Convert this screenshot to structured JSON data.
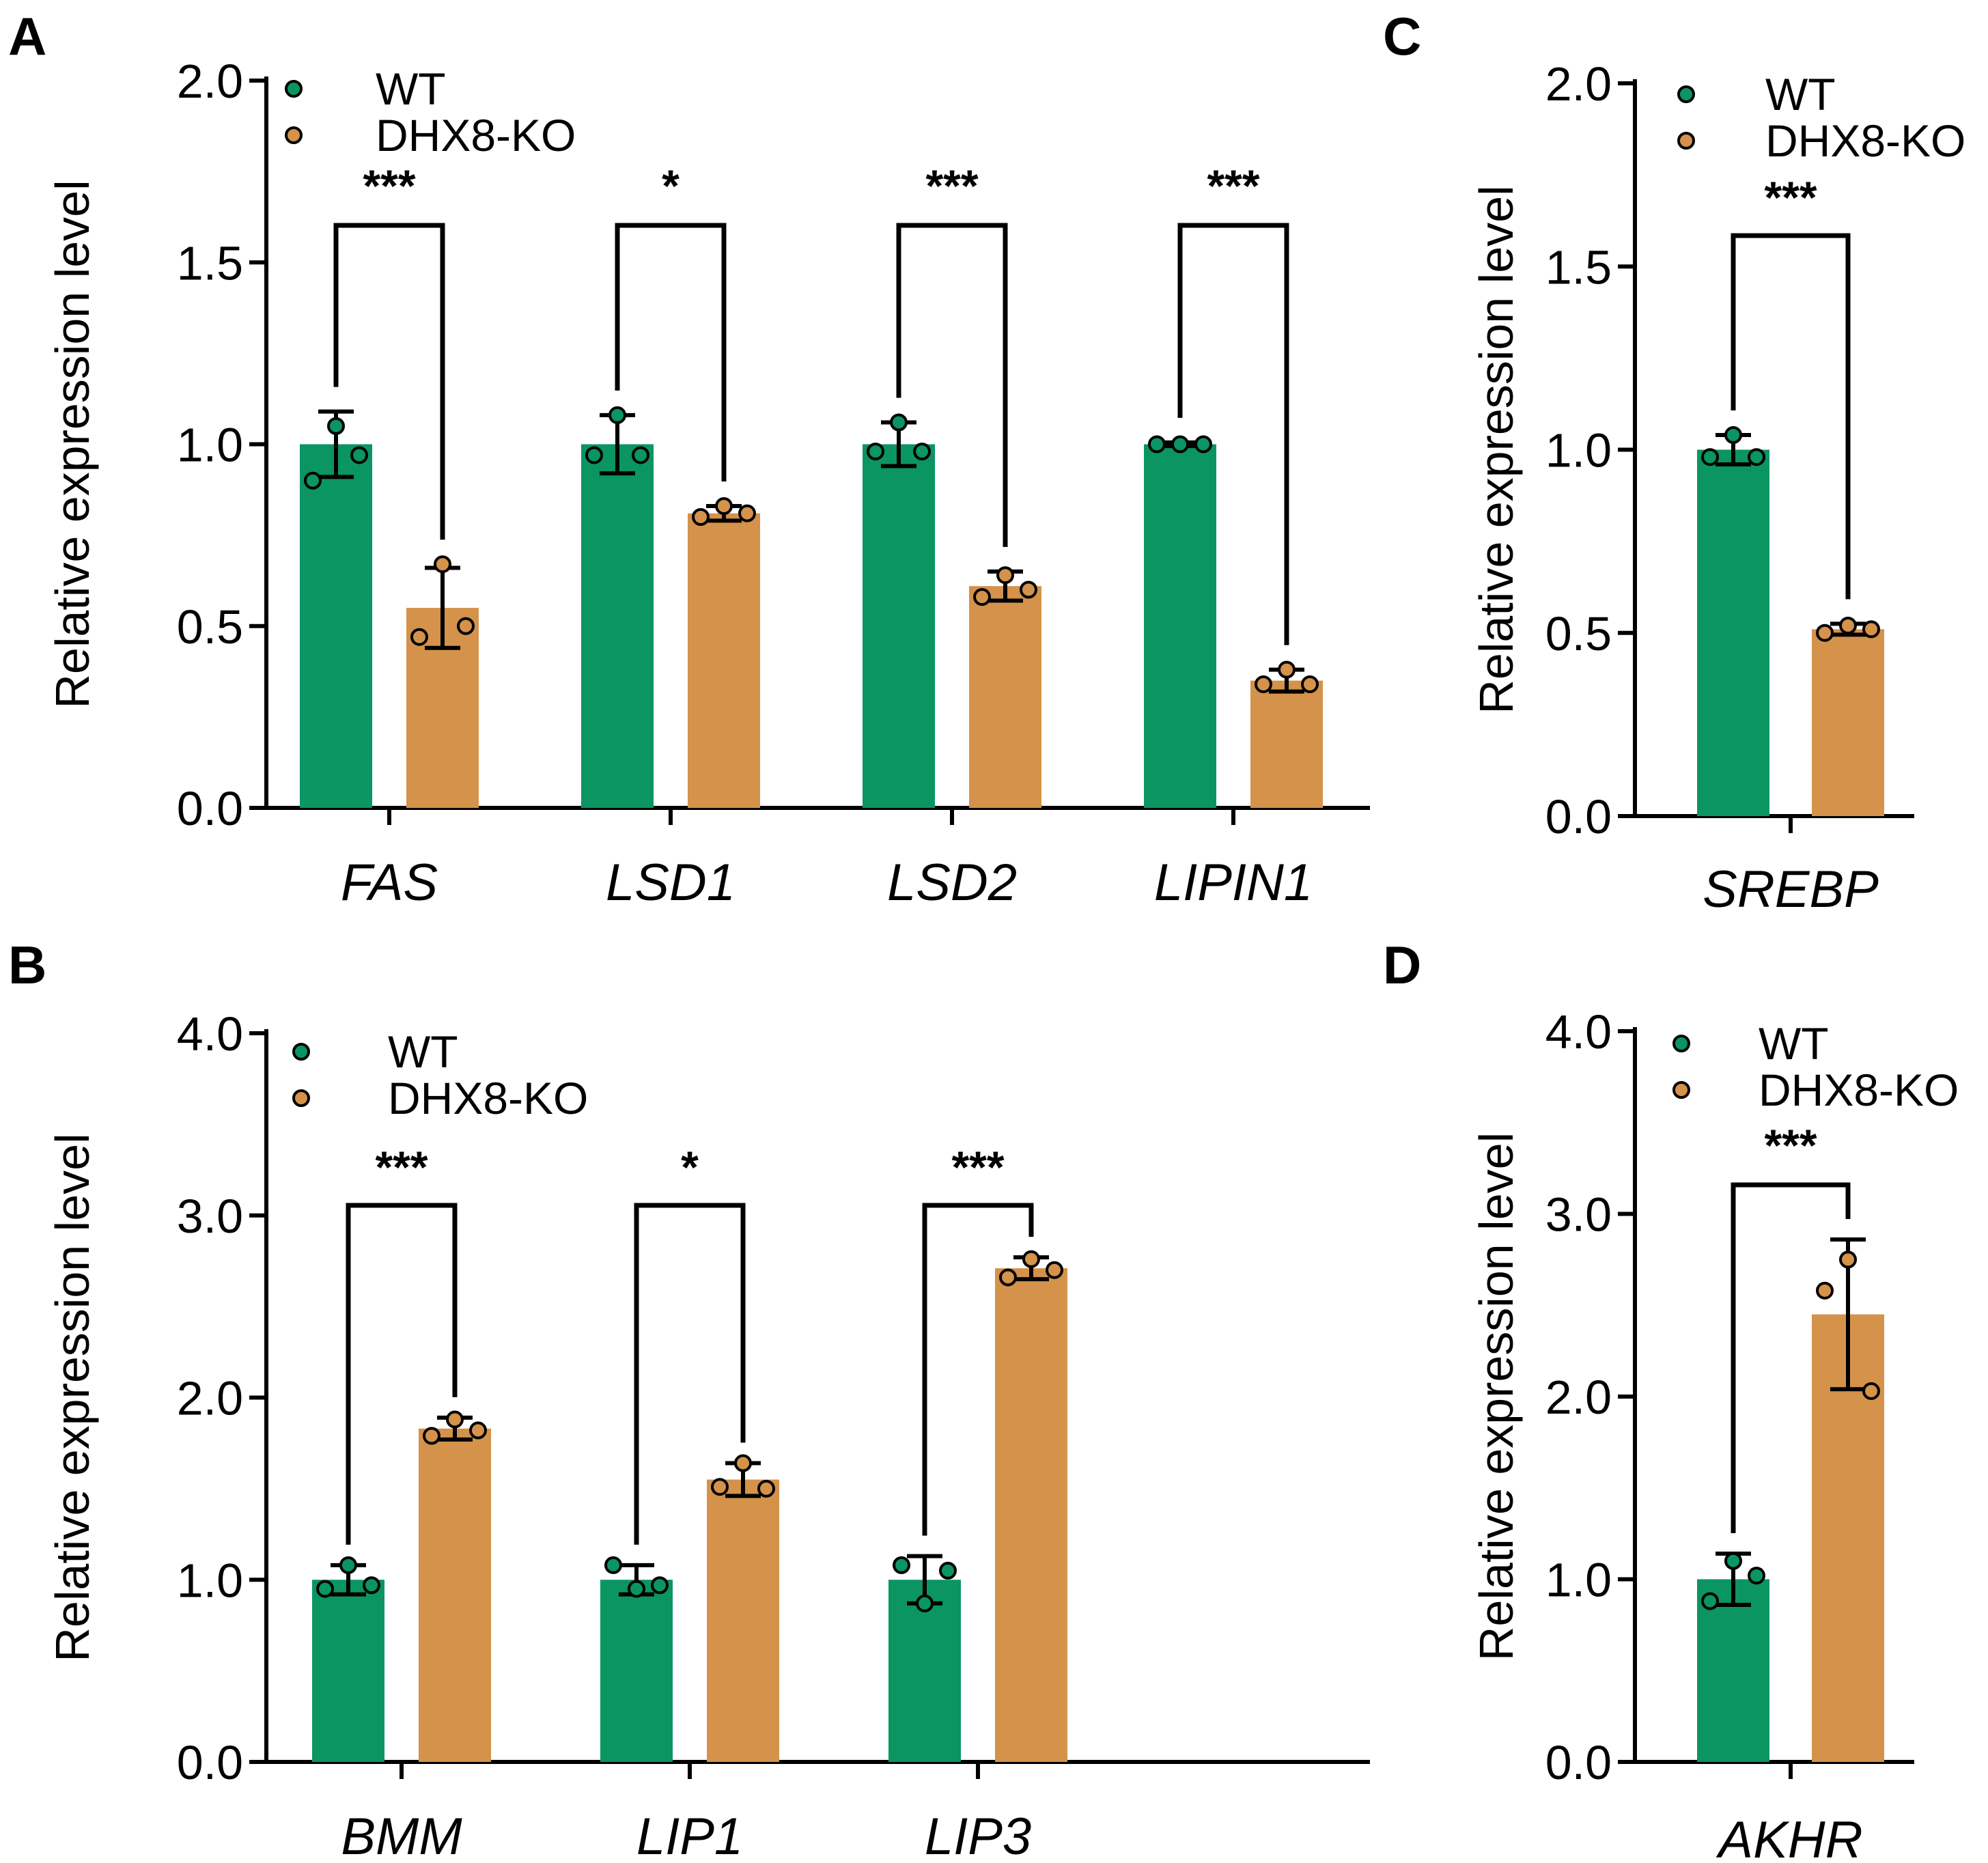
{
  "colors": {
    "WT": "#0A9563",
    "DHX8-KO": "#D4924B"
  },
  "chart_data": [
    {
      "panel": "A",
      "type": "bar",
      "ylabel": "Relative expression level",
      "ylim": [
        0,
        2.0
      ],
      "yticks": [
        "0.0",
        "0.5",
        "1.0",
        "1.5",
        "2.0"
      ],
      "legend": [
        "WT",
        "DHX8-KO"
      ],
      "legend_position": "top-left",
      "categories": [
        "FAS",
        "LSD1",
        "LSD2",
        "LIPIN1"
      ],
      "series": [
        {
          "name": "WT",
          "values": [
            1.0,
            1.0,
            1.0,
            1.0
          ],
          "errors": [
            0.09,
            0.08,
            0.06,
            0.005
          ],
          "points": [
            [
              1.05,
              0.9,
              0.97
            ],
            [
              1.08,
              0.97,
              0.97
            ],
            [
              1.06,
              0.98,
              0.98
            ],
            [
              1.0,
              1.0,
              1.0
            ]
          ]
        },
        {
          "name": "DHX8-KO",
          "values": [
            0.55,
            0.81,
            0.61,
            0.35
          ],
          "errors": [
            0.11,
            0.02,
            0.04,
            0.03
          ],
          "points": [
            [
              0.67,
              0.47,
              0.5
            ],
            [
              0.83,
              0.8,
              0.81
            ],
            [
              0.64,
              0.58,
              0.6
            ],
            [
              0.38,
              0.34,
              0.34
            ]
          ]
        }
      ],
      "significance": [
        "***",
        "*",
        "***",
        "***"
      ]
    },
    {
      "panel": "B",
      "type": "bar",
      "ylabel": "Relative expression level",
      "ylim": [
        0,
        4.0
      ],
      "yticks": [
        "0.0",
        "1.0",
        "2.0",
        "3.0",
        "4.0"
      ],
      "legend": [
        "WT",
        "DHX8-KO"
      ],
      "legend_position": "top-left",
      "categories": [
        "BMM",
        "LIP1",
        "LIP3"
      ],
      "series": [
        {
          "name": "WT",
          "values": [
            1.0,
            1.0,
            1.0
          ],
          "errors": [
            0.08,
            0.08,
            0.13
          ],
          "points": [
            [
              1.08,
              0.95,
              0.97
            ],
            [
              0.95,
              1.08,
              0.97
            ],
            [
              0.87,
              1.08,
              1.05
            ]
          ]
        },
        {
          "name": "DHX8-KO",
          "values": [
            1.83,
            1.55,
            2.71
          ],
          "errors": [
            0.06,
            0.09,
            0.06
          ],
          "points": [
            [
              1.88,
              1.79,
              1.82
            ],
            [
              1.64,
              1.51,
              1.5
            ],
            [
              2.76,
              2.66,
              2.7
            ]
          ]
        }
      ],
      "significance": [
        "***",
        "*",
        "***"
      ]
    },
    {
      "panel": "C",
      "type": "bar",
      "ylabel": "Relative expression level",
      "ylim": [
        0,
        2.0
      ],
      "yticks": [
        "0.0",
        "0.5",
        "1.0",
        "1.5",
        "2.0"
      ],
      "legend": [
        "WT",
        "DHX8-KO"
      ],
      "legend_position": "top-left",
      "categories": [
        "SREBP"
      ],
      "series": [
        {
          "name": "WT",
          "values": [
            1.0
          ],
          "errors": [
            0.04
          ],
          "points": [
            [
              1.04,
              0.98,
              0.98
            ]
          ]
        },
        {
          "name": "DHX8-KO",
          "values": [
            0.51
          ],
          "errors": [
            0.015
          ],
          "points": [
            [
              0.52,
              0.5,
              0.51
            ]
          ]
        }
      ],
      "significance": [
        "***"
      ]
    },
    {
      "panel": "D",
      "type": "bar",
      "ylabel": "Relative expression level",
      "ylim": [
        0,
        4.0
      ],
      "yticks": [
        "0.0",
        "1.0",
        "2.0",
        "3.0",
        "4.0"
      ],
      "legend": [
        "WT",
        "DHX8-KO"
      ],
      "legend_position": "top-left",
      "categories": [
        "AKHR"
      ],
      "series": [
        {
          "name": "WT",
          "values": [
            1.0
          ],
          "errors": [
            0.14
          ],
          "points": [
            [
              1.1,
              0.88,
              1.02
            ]
          ]
        },
        {
          "name": "DHX8-KO",
          "values": [
            2.45
          ],
          "errors": [
            0.41
          ],
          "points": [
            [
              2.75,
              2.58,
              2.03
            ]
          ]
        }
      ],
      "significance": [
        "***"
      ]
    }
  ]
}
